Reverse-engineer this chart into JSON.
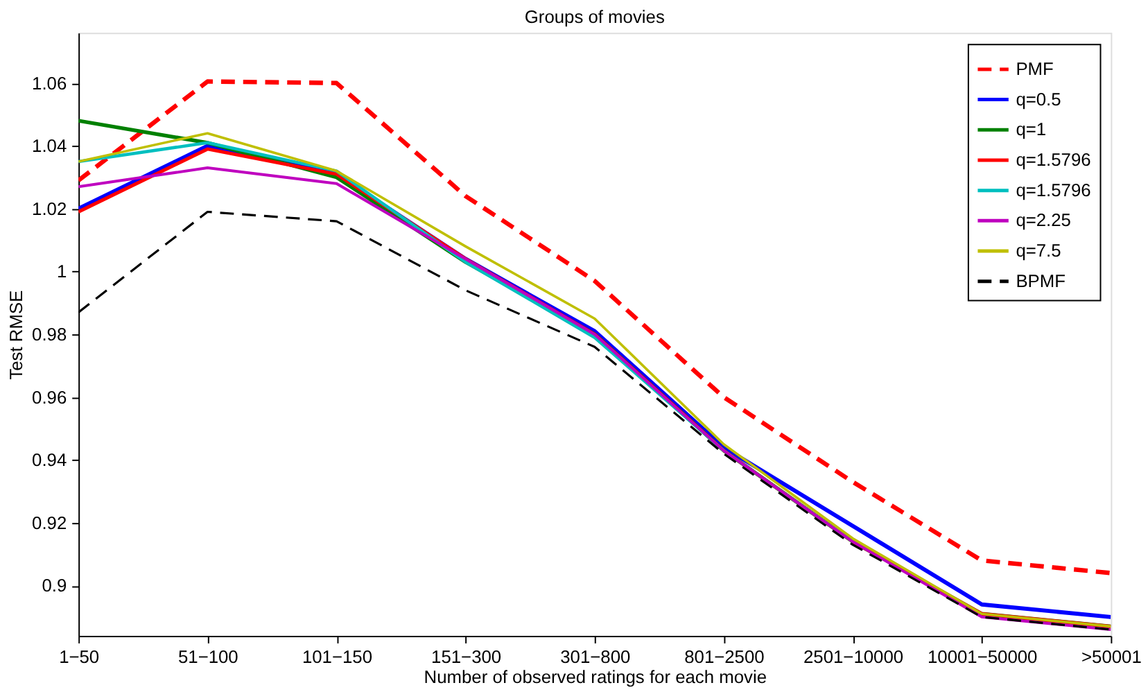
{
  "chart_data": {
    "type": "line",
    "title": "Groups of movies",
    "xlabel": "Number of observed ratings for each movie",
    "ylabel": "Test RMSE",
    "categories": [
      "1−50",
      "51−100",
      "101−150",
      "151−300",
      "301−800",
      "801−2500",
      "2501−10000",
      "10001−50000",
      ">50001"
    ],
    "ylim": [
      0.884,
      1.076
    ],
    "yticks": [
      0.9,
      0.92,
      0.94,
      0.96,
      0.98,
      1,
      1.02,
      1.04,
      1.06
    ],
    "grid": false,
    "legend": "top right",
    "marker": "none",
    "series": [
      {
        "name": "PMF",
        "color": "#ff0000",
        "line_style": "dashed",
        "values": [
          1.029,
          1.0605,
          1.06,
          1.024,
          0.997,
          0.96,
          0.933,
          0.908,
          0.904
        ]
      },
      {
        "name": "q=0.5",
        "color": "#0000ff",
        "line_style": "solid",
        "values": [
          1.02,
          1.04,
          1.031,
          1.004,
          0.981,
          0.944,
          0.919,
          0.894,
          0.89
        ]
      },
      {
        "name": "q=1",
        "color": "#008000",
        "line_style": "solid",
        "values": [
          1.048,
          1.041,
          1.03,
          1.003,
          0.98,
          0.943,
          0.914,
          0.891,
          0.887
        ]
      },
      {
        "name": "q=1.5796",
        "color": "#ff0000",
        "line_style": "solid",
        "values": [
          1.019,
          1.039,
          1.031,
          1.004,
          0.98,
          0.943,
          0.914,
          0.891,
          0.887
        ]
      },
      {
        "name": "q=1.5796",
        "color": "#00bfbf",
        "line_style": "solid",
        "values": [
          1.035,
          1.041,
          1.032,
          1.003,
          0.979,
          0.943,
          0.914,
          null,
          null
        ]
      },
      {
        "name": "q=2.25",
        "color": "#bf00bf",
        "line_style": "solid",
        "values": [
          1.027,
          1.033,
          1.028,
          1.004,
          0.98,
          0.943,
          0.914,
          0.89,
          0.886
        ]
      },
      {
        "name": "q=7.5",
        "color": "#bfbf00",
        "line_style": "solid",
        "values": [
          1.035,
          1.044,
          1.032,
          1.008,
          0.985,
          0.945,
          0.915,
          0.891,
          0.887
        ]
      },
      {
        "name": "BPMF",
        "color": "#000000",
        "line_style": "dashed",
        "values": [
          0.987,
          1.019,
          1.016,
          0.994,
          0.976,
          0.942,
          0.913,
          0.89,
          0.886
        ]
      }
    ]
  }
}
